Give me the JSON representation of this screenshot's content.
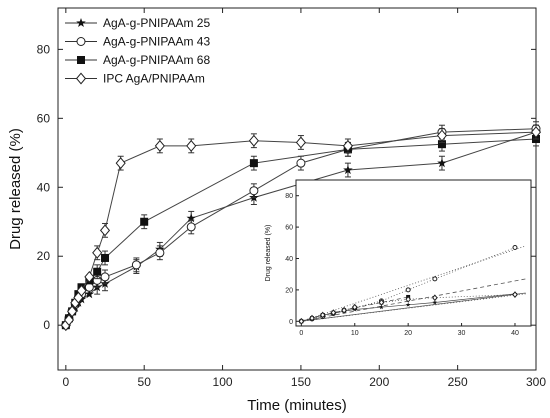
{
  "chart_data": [
    {
      "type": "scatter",
      "xlabel": "Time (minutes)",
      "ylabel": "Drug released (%)",
      "xlim": [
        -5,
        300
      ],
      "ylim": [
        -13,
        92
      ],
      "xticks": [
        0,
        50,
        100,
        150,
        200,
        250,
        300
      ],
      "yticks": [
        0,
        20,
        40,
        60,
        80
      ],
      "legend_position": "top-left",
      "series": [
        {
          "name": "AgA-g-PNIPAAm 25",
          "marker": "star",
          "x": [
            0,
            2,
            4,
            6,
            8,
            10,
            15,
            20,
            25,
            45,
            60,
            80,
            120,
            180,
            240,
            300
          ],
          "y": [
            0,
            2,
            4,
            5,
            6.5,
            7.5,
            9,
            11,
            12,
            17,
            22,
            31,
            37,
            45,
            47,
            56
          ]
        },
        {
          "name": "AgA-g-PNIPAAm 43",
          "marker": "circle-open",
          "x": [
            0,
            2,
            4,
            6,
            8,
            10,
            15,
            20,
            25,
            45,
            60,
            80,
            120,
            150,
            180,
            240,
            300
          ],
          "y": [
            0,
            2,
            4,
            6,
            8,
            9,
            11,
            13,
            14,
            17.5,
            21,
            28.5,
            39,
            47,
            51,
            56,
            57
          ]
        },
        {
          "name": "AgA-g-PNIPAAm 68",
          "marker": "square-filled",
          "x": [
            0,
            2,
            4,
            6,
            8,
            10,
            15,
            20,
            25,
            50,
            120,
            180,
            240,
            300
          ],
          "y": [
            0,
            2,
            4,
            6.5,
            9,
            11,
            13,
            15.5,
            19.5,
            30,
            47,
            51,
            52.5,
            54
          ]
        },
        {
          "name": "IPC AgA/PNIPAAm",
          "marker": "diamond-open",
          "x": [
            0,
            2,
            4,
            6,
            8,
            10,
            15,
            20,
            25,
            35,
            60,
            80,
            120,
            150,
            180,
            240,
            300
          ],
          "y": [
            0,
            1.5,
            4,
            6.5,
            8,
            10,
            14,
            21,
            27.5,
            47,
            52,
            52,
            53.5,
            53,
            52,
            55,
            56
          ]
        }
      ],
      "error_bars": {
        "value": 2
      }
    },
    {
      "type": "scatter",
      "position": "inset",
      "ylabel": "Drug released (%)",
      "xlim": [
        -1,
        43
      ],
      "ylim": [
        -3,
        90
      ],
      "xticks": [
        0,
        10,
        20,
        30,
        40
      ],
      "yticks": [
        0,
        20,
        40,
        60,
        80
      ],
      "series": [
        {
          "marker": "star",
          "line": "solid",
          "x": [
            0,
            2,
            4,
            6,
            8,
            10,
            15,
            20,
            25,
            40
          ],
          "y": [
            0,
            2,
            4,
            5,
            6.5,
            7.5,
            9,
            10.5,
            12,
            17.5
          ]
        },
        {
          "marker": "circle-open",
          "line": "dotted",
          "x": [
            0,
            2,
            4,
            6,
            8,
            10,
            15,
            20,
            25,
            40
          ],
          "y": [
            0,
            1.5,
            3,
            5,
            7,
            8.5,
            13,
            20,
            27,
            47
          ]
        },
        {
          "marker": "square-filled",
          "line": "dashed",
          "x": [
            0,
            2,
            4,
            6,
            8,
            10,
            15,
            20
          ],
          "y": [
            0,
            2,
            4,
            5.5,
            7,
            8.5,
            12,
            15.5
          ]
        },
        {
          "marker": "diamond-open",
          "line": "dotted",
          "x": [
            0,
            2,
            4,
            6,
            8,
            10,
            15,
            20,
            25,
            40
          ],
          "y": [
            0,
            2,
            4,
            5.5,
            7,
            9,
            12,
            14,
            15,
            17
          ]
        }
      ],
      "fit_lines": [
        {
          "style": "solid",
          "x": [
            0,
            42
          ],
          "y": [
            0,
            18
          ]
        },
        {
          "style": "dotted",
          "x": [
            0,
            42
          ],
          "y": [
            0,
            48
          ]
        },
        {
          "style": "dashed",
          "x": [
            0,
            42
          ],
          "y": [
            0,
            27
          ]
        },
        {
          "style": "dotted",
          "x": [
            0,
            42
          ],
          "y": [
            0,
            17.5
          ]
        }
      ]
    }
  ]
}
